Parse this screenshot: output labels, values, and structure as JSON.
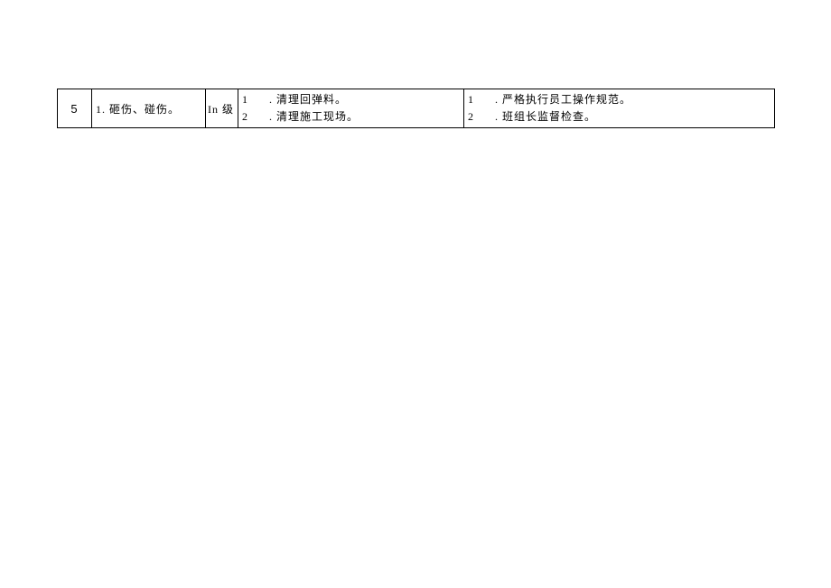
{
  "table": {
    "row": {
      "number": "5",
      "description": "1. 砸伤、碰伤。",
      "level": "In 级",
      "content1": {
        "line1_num": "1",
        "line1_text": ". 清理回弹料。",
        "line2_num": "2",
        "line2_text": ". 清理施工现场。"
      },
      "content2": {
        "line1_num": "1",
        "line1_text": ". 严格执行员工操作规范。",
        "line2_num": "2",
        "line2_text": ". 班组长监督检查。"
      }
    }
  },
  "style": {
    "border_color": "#000000",
    "background_color": "#ffffff",
    "font_size": 12,
    "font_family": "SimSun",
    "line_height": 19
  }
}
